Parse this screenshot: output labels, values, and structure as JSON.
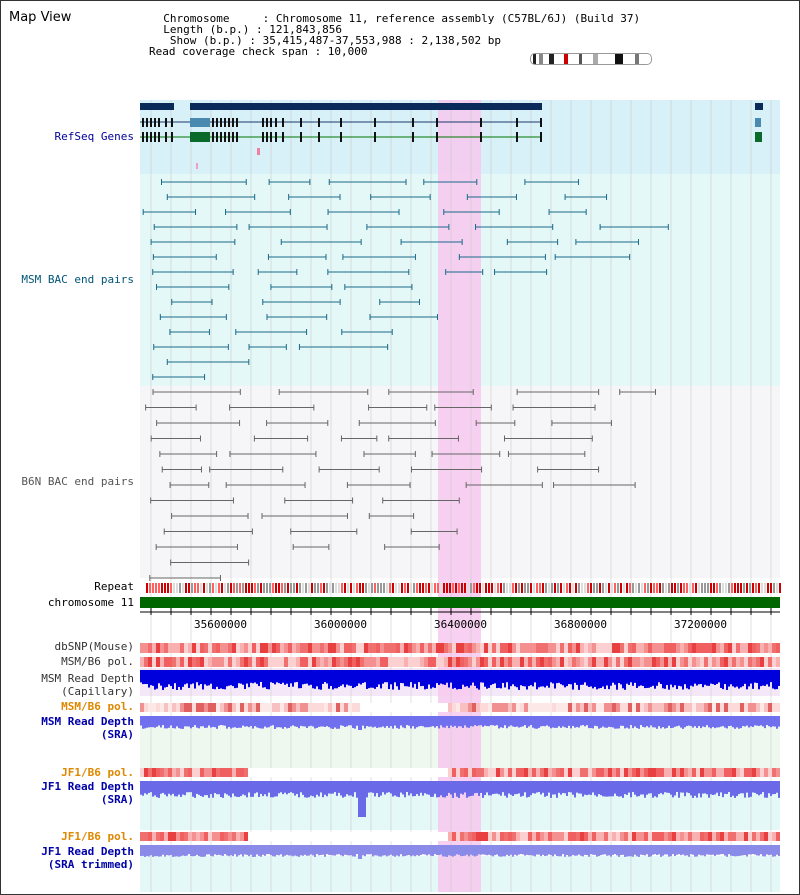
{
  "header": {
    "title": "Map View",
    "info_lines": [
      "  Chromosome     : Chromosome 11, reference assembly (C57BL/6J) (Build 37)",
      "  Length (b.p.) : 121,843,856",
      "   Show (b.p.) : 35,415,487-37,553,988 : 2,138,502 bp",
      "Read coverage check span : 10,000"
    ]
  },
  "tracks": {
    "refseq": "RefSeq Genes",
    "msm_bac": "MSM BAC end pairs",
    "b6n_bac": "B6N BAC end pairs",
    "repeat": "Repeat",
    "chromosome": "chromosome 11",
    "dbsnp": "dbSNP(Mouse)",
    "msm_b6_pol_1": "MSM/B6 pol.",
    "msm_depth_cap_1": "MSM Read Depth",
    "msm_depth_cap_2": "(Capillary)",
    "msm_b6_pol_2": "MSM/B6 pol.",
    "msm_depth_sra_1": "MSM Read Depth",
    "msm_depth_sra_2": "(SRA)",
    "jf1_pol_1": "JF1/B6 pol.",
    "jf1_depth_sra_1": "JF1 Read Depth",
    "jf1_depth_sra_2": "(SRA)",
    "jf1_pol_2": "JF1/B6 pol.",
    "jf1_depth_trim_1": "JF1 Read Depth",
    "jf1_depth_trim_2": "(SRA trimmed)"
  },
  "axis": {
    "ticks": [
      "35600000",
      "36000000",
      "36400000",
      "36800000",
      "37200000"
    ]
  },
  "colors": {
    "refseq_label": "#000099",
    "msm_bac_label": "#005577",
    "b6n_bac_label": "#555555",
    "orange_label": "#dd8800",
    "blue_label": "#0000aa",
    "highlight": "#f7c8ee",
    "chromosome_bar": "#006600"
  }
}
